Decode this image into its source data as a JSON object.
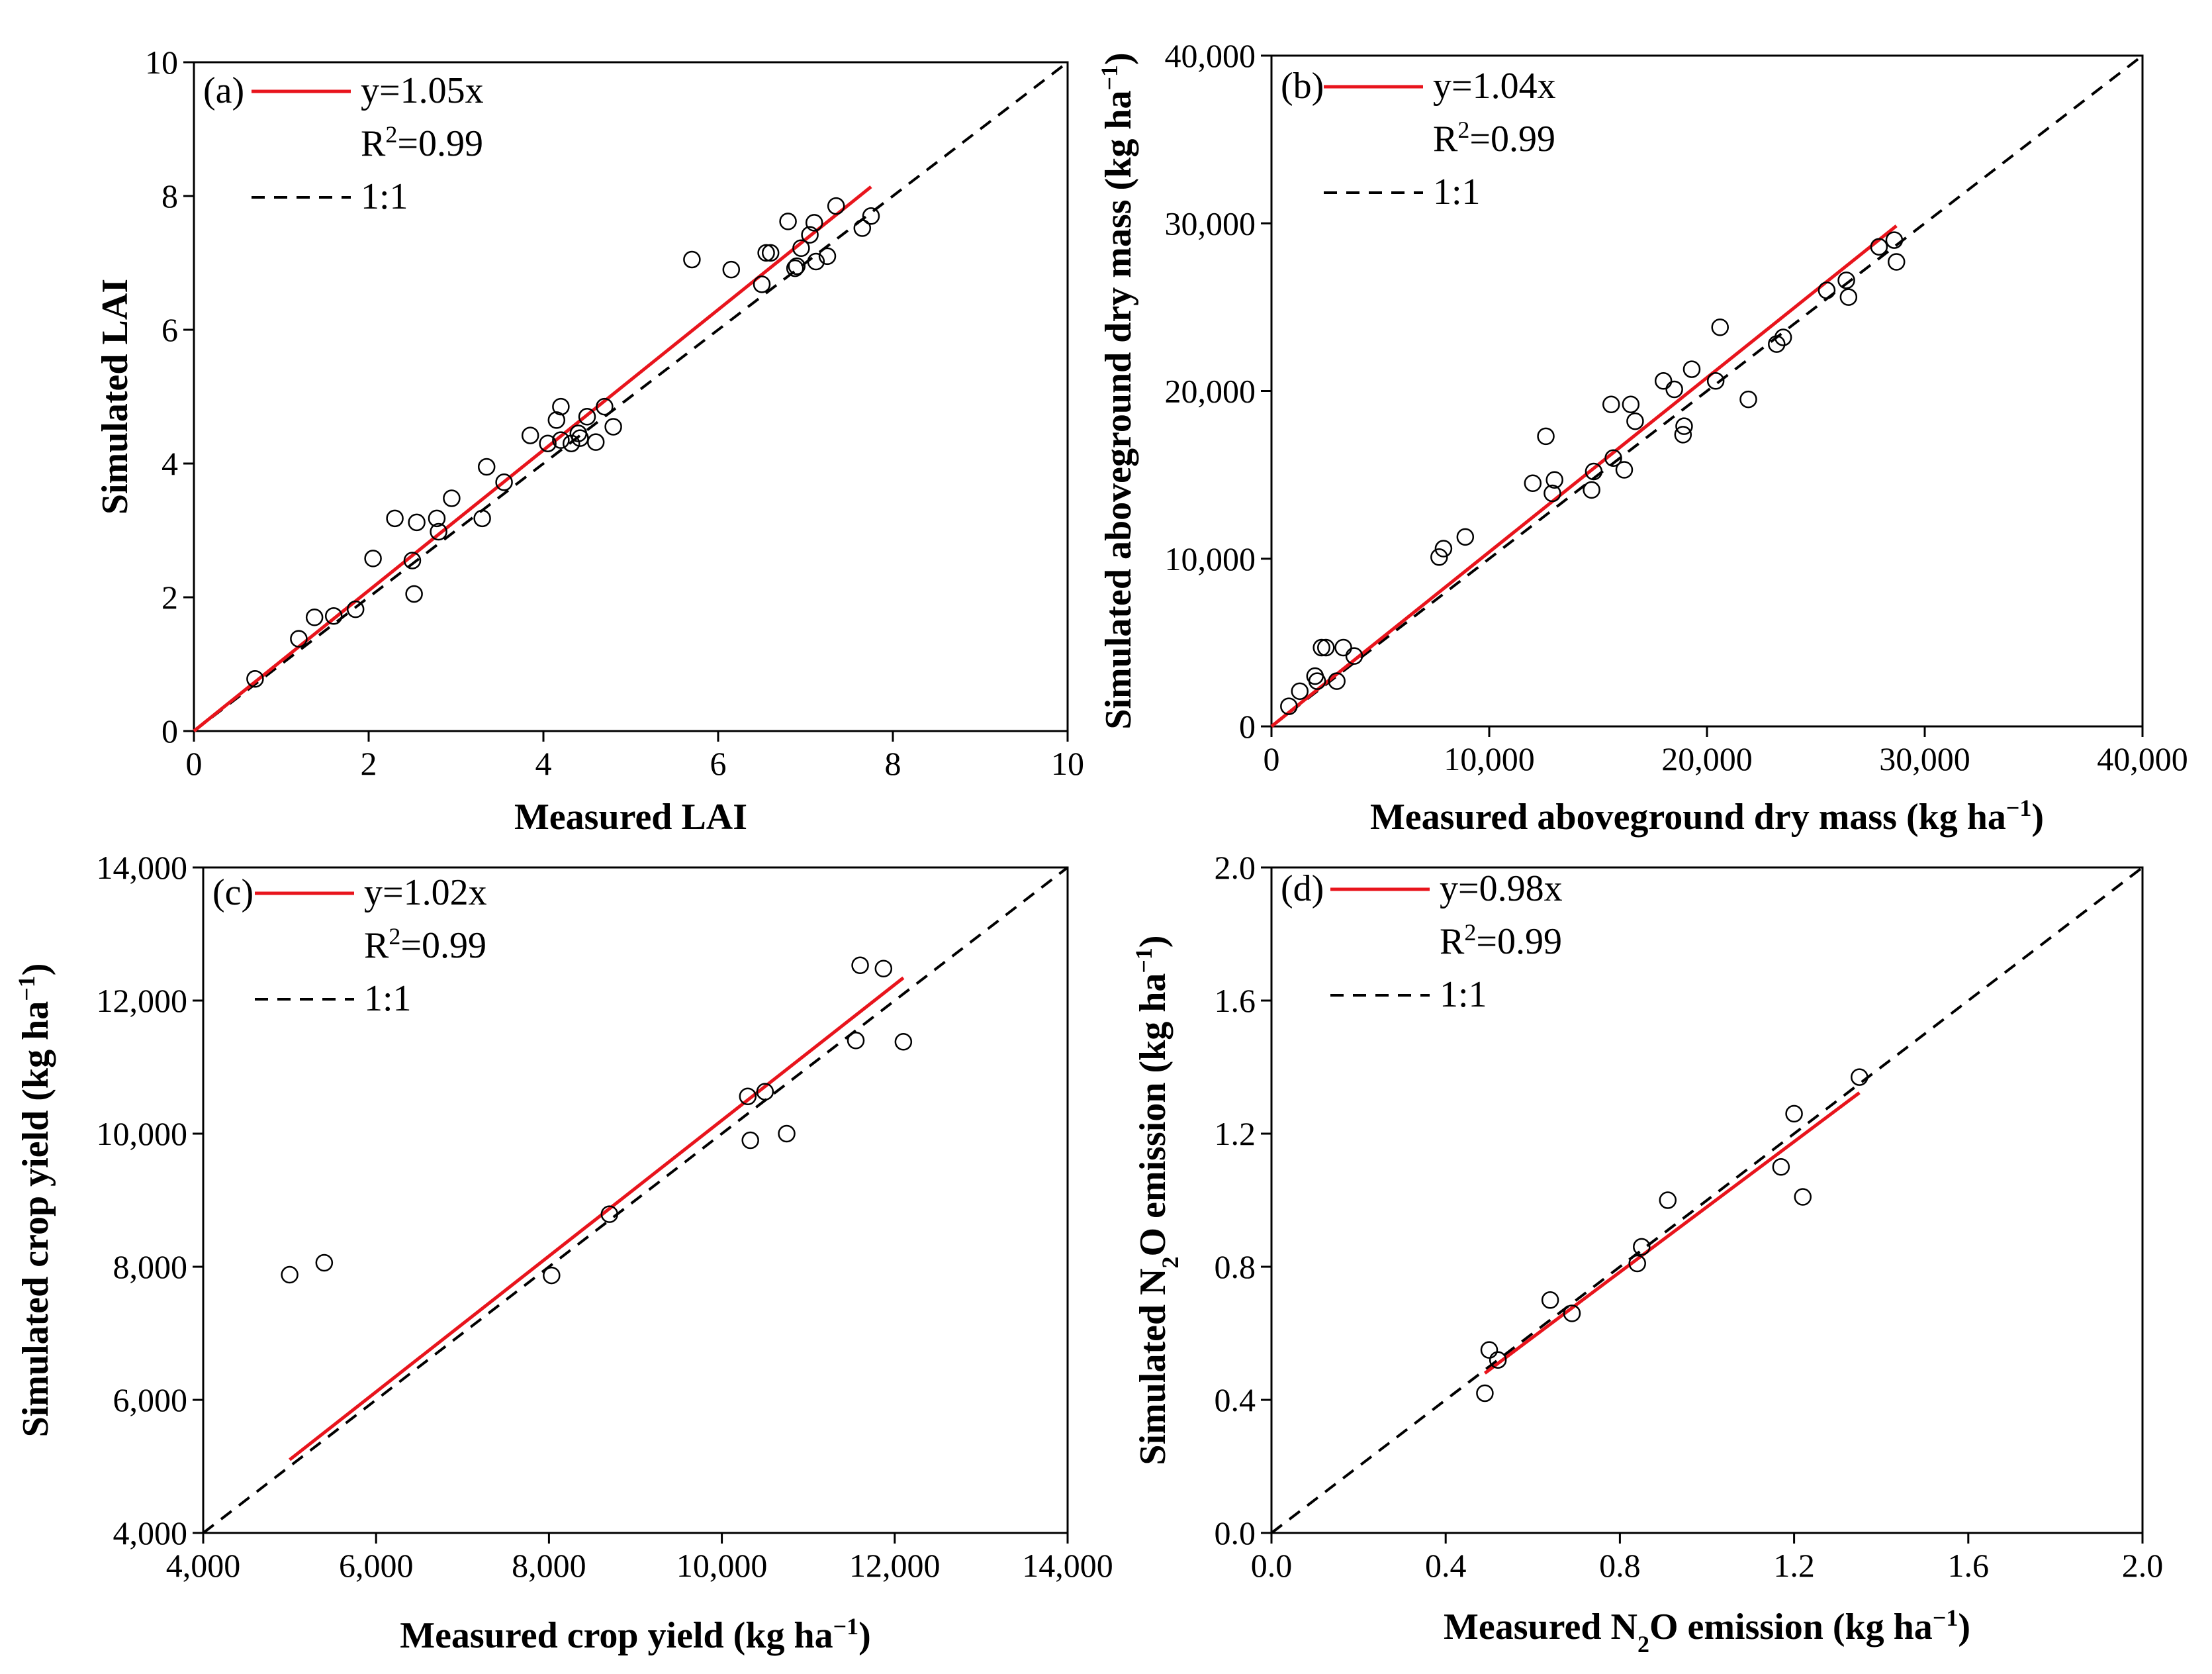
{
  "figure": {
    "panel_count": 4
  },
  "chart_data": [
    {
      "type": "scatter",
      "panel_label": "(a)",
      "xlabel": "Measured LAI",
      "ylabel": "Simulated LAI",
      "xlim": [
        0,
        10
      ],
      "ylim": [
        0,
        10
      ],
      "xticks": [
        0,
        2,
        4,
        6,
        8,
        10
      ],
      "yticks": [
        0,
        2,
        4,
        6,
        8,
        10
      ],
      "xtick_labels": [
        "0",
        "2",
        "4",
        "6",
        "8",
        "10"
      ],
      "ytick_labels": [
        "0",
        "2",
        "4",
        "6",
        "8",
        "10"
      ],
      "fit": {
        "label": "y=1.05x",
        "slope": 1.05,
        "x_range": [
          0,
          7.75
        ],
        "color": "#e8141c"
      },
      "r2_text": "0.99",
      "r2_prefix": "R",
      "r2_exp": "2",
      "oneone_label": "1:1",
      "points": [
        [
          0.7,
          0.78
        ],
        [
          1.2,
          1.38
        ],
        [
          1.38,
          1.7
        ],
        [
          1.6,
          1.72
        ],
        [
          1.85,
          1.82
        ],
        [
          2.05,
          2.58
        ],
        [
          2.3,
          3.18
        ],
        [
          2.5,
          2.55
        ],
        [
          2.52,
          2.05
        ],
        [
          2.55,
          3.12
        ],
        [
          2.78,
          3.18
        ],
        [
          2.8,
          2.98
        ],
        [
          2.95,
          3.48
        ],
        [
          3.3,
          3.18
        ],
        [
          3.35,
          3.95
        ],
        [
          3.55,
          3.72
        ],
        [
          3.85,
          4.42
        ],
        [
          4.05,
          4.3
        ],
        [
          4.15,
          4.65
        ],
        [
          4.2,
          4.85
        ],
        [
          4.2,
          4.35
        ],
        [
          4.32,
          4.3
        ],
        [
          4.4,
          4.45
        ],
        [
          4.42,
          4.38
        ],
        [
          4.5,
          4.7
        ],
        [
          4.6,
          4.32
        ],
        [
          4.7,
          4.85
        ],
        [
          4.8,
          4.55
        ],
        [
          5.7,
          7.05
        ],
        [
          6.15,
          6.9
        ],
        [
          6.5,
          6.68
        ],
        [
          6.55,
          7.15
        ],
        [
          6.6,
          7.15
        ],
        [
          6.8,
          7.62
        ],
        [
          6.88,
          6.92
        ],
        [
          6.9,
          6.95
        ],
        [
          6.95,
          7.22
        ],
        [
          7.05,
          7.42
        ],
        [
          7.1,
          7.6
        ],
        [
          7.12,
          7.02
        ],
        [
          7.25,
          7.1
        ],
        [
          7.35,
          7.85
        ],
        [
          7.65,
          7.52
        ],
        [
          7.75,
          7.7
        ]
      ]
    },
    {
      "type": "scatter",
      "panel_label": "(b)",
      "xlabel": "Measured aboveground dry mass (kg ha",
      "ylabel": "Simulated aboveground dry mass (kg ha",
      "unit_exp": "−1",
      "xlim": [
        0,
        40000
      ],
      "ylim": [
        0,
        40000
      ],
      "xticks": [
        0,
        10000,
        20000,
        30000,
        40000
      ],
      "yticks": [
        0,
        10000,
        20000,
        30000,
        40000
      ],
      "xtick_labels": [
        "0",
        "10,000",
        "20,000",
        "30,000",
        "40,000"
      ],
      "ytick_labels": [
        "0",
        "10,000",
        "20,000",
        "30,000",
        "40,000"
      ],
      "fit": {
        "label": "y=1.04x",
        "slope": 1.04,
        "x_range": [
          0,
          28700
        ],
        "color": "#e8141c"
      },
      "r2_text": "0.99",
      "r2_prefix": "R",
      "r2_exp": "2",
      "oneone_label": "1:1",
      "points": [
        [
          800,
          1200
        ],
        [
          1300,
          2100
        ],
        [
          2000,
          3000
        ],
        [
          2100,
          2700
        ],
        [
          2300,
          4700
        ],
        [
          2500,
          4700
        ],
        [
          3000,
          2700
        ],
        [
          3300,
          4700
        ],
        [
          3800,
          4200
        ],
        [
          7700,
          10100
        ],
        [
          7900,
          10600
        ],
        [
          8900,
          11300
        ],
        [
          12000,
          14500
        ],
        [
          12600,
          17300
        ],
        [
          12900,
          13900
        ],
        [
          13000,
          14700
        ],
        [
          14700,
          14100
        ],
        [
          14800,
          15200
        ],
        [
          15600,
          19200
        ],
        [
          15700,
          16000
        ],
        [
          16200,
          15300
        ],
        [
          16500,
          19200
        ],
        [
          16700,
          18200
        ],
        [
          18000,
          20600
        ],
        [
          18500,
          20100
        ],
        [
          18900,
          17400
        ],
        [
          18950,
          17900
        ],
        [
          19300,
          21300
        ],
        [
          20400,
          20600
        ],
        [
          20600,
          23800
        ],
        [
          21900,
          19500
        ],
        [
          23200,
          22800
        ],
        [
          23500,
          23200
        ],
        [
          25500,
          26000
        ],
        [
          26400,
          26600
        ],
        [
          26500,
          25600
        ],
        [
          27900,
          28600
        ],
        [
          28600,
          29000
        ],
        [
          28700,
          27700
        ]
      ]
    },
    {
      "type": "scatter",
      "panel_label": "(c)",
      "xlabel": "Measured crop yield (kg ha",
      "ylabel": "Simulated crop yield (kg ha",
      "unit_exp": "−1",
      "xlim": [
        4000,
        14000
      ],
      "ylim": [
        4000,
        14000
      ],
      "xticks": [
        4000,
        6000,
        8000,
        10000,
        12000,
        14000
      ],
      "yticks": [
        4000,
        6000,
        8000,
        10000,
        12000,
        14000
      ],
      "xtick_labels": [
        "4,000",
        "6,000",
        "8,000",
        "10,000",
        "12,000",
        "14,000"
      ],
      "ytick_labels": [
        "4,000",
        "6,000",
        "8,000",
        "10,000",
        "12,000",
        "14,000"
      ],
      "fit": {
        "label": "y=1.02x",
        "slope": 1.02,
        "x_range": [
          5000,
          12100
        ],
        "color": "#e8141c"
      },
      "r2_text": "0.99",
      "r2_prefix": "R",
      "r2_exp": "2",
      "oneone_label": "1:1",
      "points": [
        [
          5000,
          7880
        ],
        [
          5400,
          8060
        ],
        [
          8030,
          7870
        ],
        [
          8700,
          8790
        ],
        [
          10300,
          10560
        ],
        [
          10330,
          9900
        ],
        [
          10500,
          10630
        ],
        [
          10750,
          10000
        ],
        [
          11550,
          11400
        ],
        [
          11600,
          12530
        ],
        [
          11870,
          12480
        ],
        [
          12100,
          11380
        ]
      ]
    },
    {
      "type": "scatter",
      "panel_label": "(d)",
      "xlabel_parts": [
        "Measured N",
        "2",
        "O emission (kg ha",
        "−1",
        ")"
      ],
      "ylabel_parts": [
        "Simulated N",
        "2",
        "O emission (kg ha",
        "−1",
        ")"
      ],
      "xlim": [
        0,
        2.0
      ],
      "ylim": [
        0,
        2.0
      ],
      "xticks": [
        0,
        0.4,
        0.8,
        1.2,
        1.6,
        2.0
      ],
      "yticks": [
        0,
        0.4,
        0.8,
        1.2,
        1.6,
        2.0
      ],
      "xtick_labels": [
        "0.0",
        "0.4",
        "0.8",
        "1.2",
        "1.6",
        "2.0"
      ],
      "ytick_labels": [
        "0.0",
        "0.4",
        "0.8",
        "1.2",
        "1.6",
        "2.0"
      ],
      "fit": {
        "label": "y=0.98x",
        "slope": 0.98,
        "x_range": [
          0.49,
          1.35
        ],
        "color": "#e8141c"
      },
      "r2_text": "0.99",
      "r2_prefix": "R",
      "r2_exp": "2",
      "oneone_label": "1:1",
      "points": [
        [
          0.49,
          0.42
        ],
        [
          0.5,
          0.55
        ],
        [
          0.52,
          0.52
        ],
        [
          0.64,
          0.7
        ],
        [
          0.69,
          0.66
        ],
        [
          0.84,
          0.81
        ],
        [
          0.85,
          0.86
        ],
        [
          0.91,
          1.0
        ],
        [
          1.17,
          1.1
        ],
        [
          1.2,
          1.26
        ],
        [
          1.22,
          1.01
        ],
        [
          1.35,
          1.37
        ]
      ]
    }
  ]
}
